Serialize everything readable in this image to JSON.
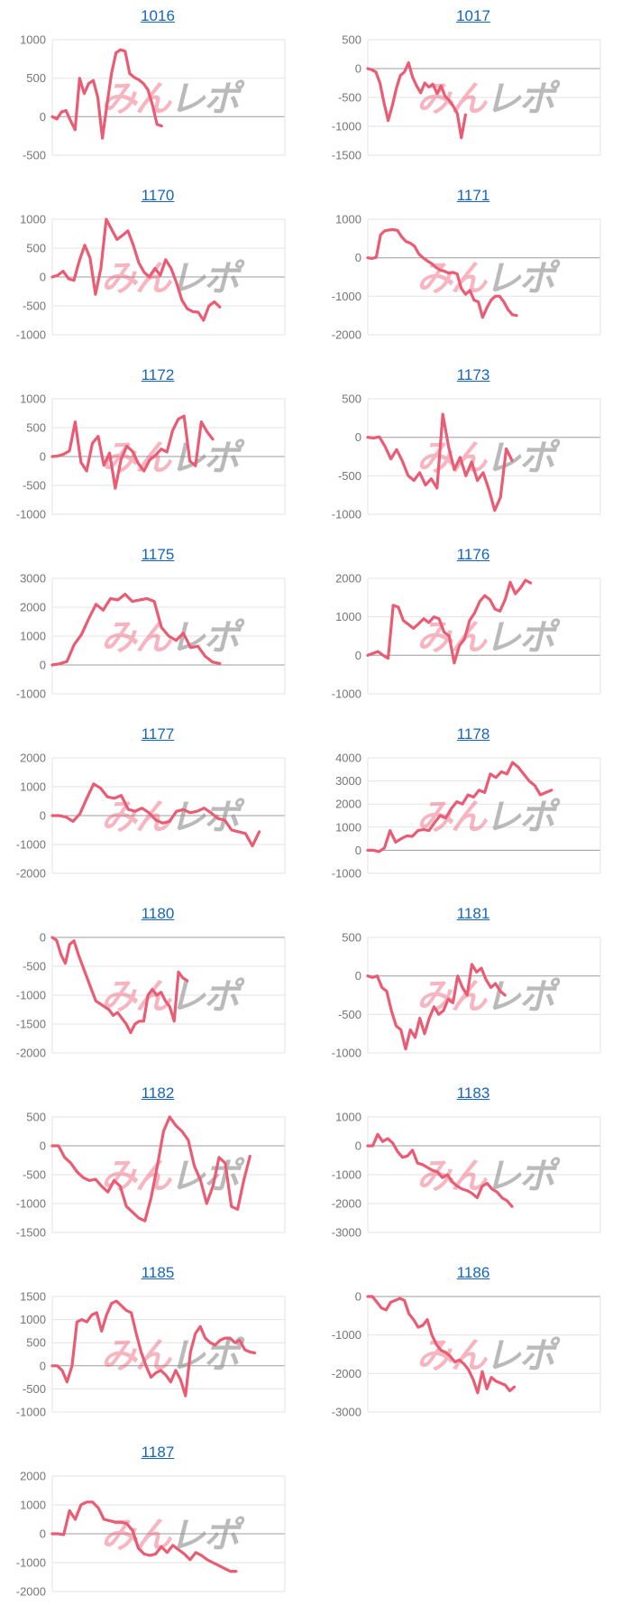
{
  "page": {
    "background": "#ffffff"
  },
  "colors": {
    "line": "#e95c74",
    "title_link": "#1565c0",
    "grid_line": "#e3e3e3",
    "zero_line": "#9c9c9c",
    "tick_label": "#757575"
  },
  "watermark": {
    "part1": "みん",
    "part2": "レポ",
    "color1": "#EA5A7473",
    "color2": "#8C8C8C99"
  },
  "chart_data": [
    {
      "type": "line",
      "title": "1016",
      "ylabel": "",
      "ylim": [
        -500,
        1000
      ],
      "yticks": [
        1000,
        500,
        0,
        -500
      ],
      "grid": true,
      "legend": "none",
      "end_frac": 0.47,
      "values": [
        0,
        -30,
        60,
        80,
        -50,
        -170,
        500,
        300,
        430,
        470,
        250,
        -280,
        150,
        560,
        830,
        870,
        850,
        560,
        510,
        480,
        430,
        350,
        150,
        -100,
        -120
      ]
    },
    {
      "type": "line",
      "title": "1017",
      "ylabel": "",
      "ylim": [
        -1500,
        500
      ],
      "yticks": [
        500,
        0,
        -500,
        -1000,
        -1500
      ],
      "grid": true,
      "legend": "none",
      "end_frac": 0.42,
      "values": [
        0,
        -20,
        -60,
        -250,
        -600,
        -900,
        -650,
        -350,
        -120,
        -60,
        100,
        -150,
        -300,
        -420,
        -250,
        -320,
        -270,
        -430,
        -300,
        -480,
        -550,
        -650,
        -780,
        -1200,
        -800
      ]
    },
    {
      "type": "line",
      "title": "1170",
      "ylabel": "",
      "ylim": [
        -1000,
        1000
      ],
      "yticks": [
        1000,
        500,
        0,
        -500,
        -1000
      ],
      "grid": true,
      "legend": "none",
      "end_frac": 0.72,
      "values": [
        0,
        30,
        100,
        -30,
        -60,
        280,
        550,
        330,
        -300,
        150,
        1000,
        820,
        650,
        720,
        800,
        550,
        250,
        80,
        0,
        150,
        30,
        300,
        150,
        -100,
        -400,
        -550,
        -600,
        -610,
        -750,
        -500,
        -430,
        -520
      ]
    },
    {
      "type": "line",
      "title": "1171",
      "ylabel": "",
      "ylim": [
        -2000,
        1000
      ],
      "yticks": [
        1000,
        0,
        -1000,
        -2000
      ],
      "grid": true,
      "legend": "none",
      "end_frac": 0.64,
      "values": [
        0,
        -20,
        10,
        600,
        700,
        720,
        730,
        710,
        540,
        420,
        380,
        300,
        100,
        0,
        -80,
        -150,
        -250,
        -320,
        -350,
        -400,
        -380,
        -420,
        -800,
        -950,
        -850,
        -1100,
        -1150,
        -1550,
        -1300,
        -1100,
        -1000,
        -1000,
        -1150,
        -1350,
        -1480,
        -1500
      ]
    },
    {
      "type": "line",
      "title": "1172",
      "ylabel": "",
      "ylim": [
        -1000,
        1000
      ],
      "yticks": [
        1000,
        500,
        0,
        -500,
        -1000
      ],
      "grid": true,
      "legend": "none",
      "end_frac": 0.69,
      "values": [
        0,
        10,
        40,
        100,
        600,
        -100,
        -250,
        230,
        350,
        -150,
        60,
        -550,
        -50,
        180,
        90,
        -120,
        -250,
        -60,
        20,
        130,
        80,
        450,
        650,
        700,
        -80,
        -160,
        600,
        430,
        300
      ]
    },
    {
      "type": "line",
      "title": "1173",
      "ylabel": "",
      "ylim": [
        -1000,
        500
      ],
      "yticks": [
        500,
        0,
        -500,
        -1000
      ],
      "grid": true,
      "legend": "none",
      "end_frac": 0.62,
      "values": [
        0,
        -10,
        5,
        -120,
        -280,
        -160,
        -310,
        -500,
        -560,
        -460,
        -620,
        -540,
        -660,
        300,
        -120,
        -420,
        -260,
        -500,
        -320,
        -560,
        -460,
        -680,
        -950,
        -780,
        -150,
        -300
      ]
    },
    {
      "type": "line",
      "title": "1175",
      "ylabel": "",
      "ylim": [
        -1000,
        3000
      ],
      "yticks": [
        3000,
        2000,
        1000,
        0,
        -1000
      ],
      "grid": true,
      "legend": "none",
      "end_frac": 0.72,
      "values": [
        0,
        40,
        120,
        700,
        1050,
        1600,
        2100,
        1900,
        2300,
        2250,
        2450,
        2200,
        2250,
        2300,
        2200,
        1300,
        1000,
        850,
        1100,
        600,
        650,
        300,
        100,
        50
      ]
    },
    {
      "type": "line",
      "title": "1176",
      "ylabel": "",
      "ylim": [
        -1000,
        2000
      ],
      "yticks": [
        2000,
        1000,
        0,
        -1000
      ],
      "grid": true,
      "legend": "none",
      "end_frac": 0.7,
      "values": [
        0,
        50,
        100,
        0,
        -80,
        1300,
        1250,
        900,
        800,
        700,
        820,
        950,
        850,
        1000,
        950,
        600,
        500,
        -200,
        250,
        420,
        900,
        1100,
        1400,
        1550,
        1450,
        1200,
        1150,
        1450,
        1900,
        1600,
        1750,
        1950,
        1880
      ]
    },
    {
      "type": "line",
      "title": "1177",
      "ylabel": "",
      "ylim": [
        -2000,
        2000
      ],
      "yticks": [
        2000,
        1000,
        0,
        -1000,
        -2000
      ],
      "grid": true,
      "legend": "none",
      "end_frac": 0.89,
      "values": [
        0,
        0,
        -50,
        -200,
        60,
        600,
        1100,
        950,
        650,
        600,
        700,
        220,
        150,
        260,
        100,
        -150,
        -260,
        -200,
        150,
        210,
        100,
        150,
        260,
        100,
        -100,
        -160,
        -500,
        -560,
        -620,
        -1050,
        -560
      ]
    },
    {
      "type": "line",
      "title": "1178",
      "ylabel": "",
      "ylim": [
        -1000,
        4000
      ],
      "yticks": [
        4000,
        3000,
        2000,
        1000,
        0,
        -1000
      ],
      "grid": true,
      "legend": "none",
      "end_frac": 0.79,
      "values": [
        0,
        0,
        -60,
        100,
        850,
        350,
        500,
        620,
        600,
        850,
        900,
        850,
        1200,
        1500,
        1400,
        1800,
        2100,
        2000,
        2400,
        2300,
        2600,
        2500,
        3300,
        3150,
        3400,
        3300,
        3800,
        3600,
        3300,
        3000,
        2800,
        2400,
        2500,
        2600
      ]
    },
    {
      "type": "line",
      "title": "1180",
      "ylabel": "",
      "ylim": [
        -2000,
        0
      ],
      "yticks": [
        0,
        -500,
        -1000,
        -1500,
        -2000
      ],
      "grid": true,
      "legend": "none",
      "end_frac": 0.58,
      "values": [
        0,
        -50,
        -300,
        -450,
        -120,
        -60,
        -300,
        -500,
        -700,
        -900,
        -1100,
        -1150,
        -1200,
        -1250,
        -1350,
        -1300,
        -1400,
        -1500,
        -1650,
        -1500,
        -1450,
        -1450,
        -1000,
        -900,
        -1000,
        -950,
        -1100,
        -1200,
        -1450,
        -600,
        -700,
        -750
      ]
    },
    {
      "type": "line",
      "title": "1181",
      "ylabel": "",
      "ylim": [
        -1000,
        500
      ],
      "yticks": [
        500,
        0,
        -500,
        -1000
      ],
      "grid": true,
      "legend": "none",
      "end_frac": 0.59,
      "values": [
        0,
        -20,
        0,
        -150,
        -200,
        -450,
        -650,
        -700,
        -950,
        -700,
        -800,
        -550,
        -750,
        -550,
        -400,
        -500,
        -450,
        -300,
        -350,
        0,
        -150,
        -250,
        150,
        50,
        100,
        -50,
        -150,
        -100,
        -200,
        -250
      ]
    },
    {
      "type": "line",
      "title": "1182",
      "ylabel": "",
      "ylim": [
        -1500,
        500
      ],
      "yticks": [
        500,
        0,
        -500,
        -1000,
        -1500
      ],
      "grid": true,
      "legend": "none",
      "end_frac": 0.85,
      "values": [
        0,
        0,
        -200,
        -300,
        -450,
        -550,
        -600,
        -580,
        -700,
        -800,
        -600,
        -700,
        -1050,
        -1150,
        -1250,
        -1300,
        -900,
        -350,
        250,
        500,
        350,
        250,
        100,
        -350,
        -600,
        -1000,
        -700,
        -200,
        -300,
        -1050,
        -1100,
        -600,
        -180
      ]
    },
    {
      "type": "line",
      "title": "1183",
      "ylabel": "",
      "ylim": [
        -3000,
        1000
      ],
      "yticks": [
        1000,
        0,
        -1000,
        -2000,
        -3000
      ],
      "grid": true,
      "legend": "none",
      "end_frac": 0.62,
      "values": [
        0,
        0,
        400,
        150,
        250,
        100,
        -200,
        -400,
        -350,
        -150,
        -600,
        -650,
        -750,
        -850,
        -900,
        -1100,
        -1000,
        -1250,
        -1400,
        -1500,
        -1550,
        -1650,
        -1800,
        -1400,
        -1300,
        -1500,
        -1600,
        -1800,
        -1900,
        -2100
      ]
    },
    {
      "type": "line",
      "title": "1185",
      "ylabel": "",
      "ylim": [
        -1000,
        1500
      ],
      "yticks": [
        1500,
        1000,
        500,
        0,
        -500,
        -1000
      ],
      "grid": true,
      "legend": "none",
      "end_frac": 0.87,
      "values": [
        0,
        0,
        -100,
        -350,
        0,
        950,
        1000,
        950,
        1100,
        1150,
        750,
        1100,
        1350,
        1400,
        1300,
        1200,
        1150,
        700,
        300,
        0,
        -250,
        -150,
        -100,
        -200,
        -350,
        -100,
        -300,
        -650,
        300,
        700,
        850,
        600,
        500,
        450,
        550,
        600,
        600,
        500,
        550,
        350,
        300,
        280
      ]
    },
    {
      "type": "line",
      "title": "1186",
      "ylabel": "",
      "ylim": [
        -3000,
        0
      ],
      "yticks": [
        0,
        -1000,
        -2000,
        -3000
      ],
      "grid": true,
      "legend": "none",
      "end_frac": 0.63,
      "values": [
        0,
        0,
        -150,
        -300,
        -350,
        -150,
        -100,
        -50,
        -100,
        -450,
        -600,
        -800,
        -750,
        -600,
        -1000,
        -1250,
        -1400,
        -1450,
        -1550,
        -1700,
        -1650,
        -1750,
        -1900,
        -2150,
        -2500,
        -1950,
        -2400,
        -2100,
        -2200,
        -2250,
        -2300,
        -2450,
        -2350
      ]
    },
    {
      "type": "line",
      "title": "1187",
      "ylabel": "",
      "ylim": [
        -2000,
        2000
      ],
      "yticks": [
        2000,
        1000,
        0,
        -1000,
        -2000
      ],
      "grid": true,
      "legend": "none",
      "end_frac": 0.79,
      "values": [
        0,
        0,
        -30,
        800,
        500,
        1000,
        1100,
        1100,
        900,
        500,
        450,
        400,
        400,
        350,
        100,
        -500,
        -700,
        -750,
        -700,
        -450,
        -650,
        -400,
        -550,
        -700,
        -900,
        -650,
        -750,
        -900,
        -1000,
        -1100,
        -1200,
        -1300,
        -1300
      ]
    }
  ]
}
